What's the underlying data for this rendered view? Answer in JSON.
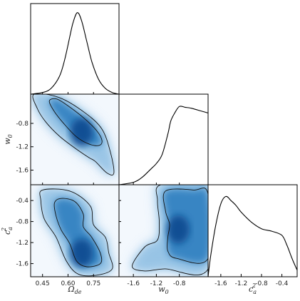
{
  "chart_data": {
    "type": "corner",
    "parameters": [
      {
        "name": "omega_de",
        "label": "Ω",
        "label_sub": "de",
        "label_sup": "",
        "range": [
          0.38,
          0.9
        ],
        "ticks": [
          0.45,
          0.6,
          0.75
        ],
        "tick_labels": [
          "0.45",
          "0.60",
          "0.75"
        ]
      },
      {
        "name": "w0",
        "label": "w",
        "label_sub": "0",
        "label_sup": "",
        "range": [
          -1.85,
          -0.3
        ],
        "ticks": [
          -1.6,
          -1.2,
          -0.8
        ],
        "tick_labels": [
          "-1.6",
          "-1.2",
          "-0.8"
        ]
      },
      {
        "name": "ca2",
        "label": "c",
        "label_sub": "a",
        "label_sup": "2",
        "range": [
          -1.85,
          -0.1
        ],
        "ticks": [
          -1.6,
          -1.2,
          -0.8,
          -0.4
        ],
        "tick_labels": [
          "-1.6",
          "-1.2",
          "-0.8",
          "-0.4"
        ]
      }
    ],
    "marginals": [
      {
        "param": "omega_de",
        "x": [
          0.38,
          0.45,
          0.5,
          0.55,
          0.58,
          0.61,
          0.63,
          0.655,
          0.68,
          0.71,
          0.74,
          0.78,
          0.82,
          0.86,
          0.9
        ],
        "density": [
          0.0,
          0.02,
          0.07,
          0.22,
          0.42,
          0.7,
          0.88,
          1.0,
          0.9,
          0.65,
          0.4,
          0.18,
          0.07,
          0.02,
          0.0
        ]
      },
      {
        "param": "w0",
        "x": [
          -1.85,
          -1.6,
          -1.45,
          -1.3,
          -1.2,
          -1.1,
          -1.0,
          -0.95,
          -0.88,
          -0.8,
          -0.7,
          -0.6,
          -0.5,
          -0.4,
          -0.3
        ],
        "density": [
          0.0,
          0.03,
          0.09,
          0.19,
          0.26,
          0.37,
          0.62,
          0.78,
          0.88,
          0.96,
          0.95,
          0.94,
          0.92,
          0.9,
          0.88
        ]
      },
      {
        "param": "ca2",
        "x": [
          -1.85,
          -1.8,
          -1.7,
          -1.6,
          -1.5,
          -1.4,
          -1.3,
          -1.2,
          -1.0,
          -0.8,
          -0.6,
          -0.4,
          -0.3,
          -0.2,
          -0.1
        ],
        "density": [
          0.0,
          0.25,
          0.62,
          0.88,
          0.97,
          0.92,
          0.86,
          0.78,
          0.66,
          0.58,
          0.55,
          0.5,
          0.38,
          0.22,
          0.08
        ]
      }
    ],
    "joints": [
      {
        "x_param": "omega_de",
        "y_param": "w0",
        "peak": [
          0.68,
          -0.95
        ],
        "contour_68": [
          [
            0.53,
            -0.38
          ],
          [
            0.59,
            -0.48
          ],
          [
            0.69,
            -0.7
          ],
          [
            0.77,
            -0.93
          ],
          [
            0.8,
            -1.1
          ],
          [
            0.78,
            -1.18
          ],
          [
            0.72,
            -1.15
          ],
          [
            0.65,
            -1.03
          ],
          [
            0.58,
            -0.82
          ],
          [
            0.52,
            -0.6
          ],
          [
            0.49,
            -0.42
          ]
        ],
        "contour_95": [
          [
            0.4,
            -0.3
          ],
          [
            0.55,
            -0.36
          ],
          [
            0.7,
            -0.62
          ],
          [
            0.8,
            -0.9
          ],
          [
            0.85,
            -1.3
          ],
          [
            0.87,
            -1.65
          ],
          [
            0.83,
            -1.65
          ],
          [
            0.76,
            -1.45
          ],
          [
            0.72,
            -1.38
          ],
          [
            0.63,
            -1.2
          ],
          [
            0.55,
            -1.02
          ],
          [
            0.47,
            -0.78
          ],
          [
            0.42,
            -0.55
          ]
        ]
      },
      {
        "x_param": "omega_de",
        "y_param": "ca2",
        "peak": [
          0.68,
          -1.4
        ],
        "contour_68": [
          [
            0.56,
            -0.36
          ],
          [
            0.64,
            -0.42
          ],
          [
            0.69,
            -0.66
          ],
          [
            0.69,
            -0.9
          ],
          [
            0.74,
            -1.1
          ],
          [
            0.79,
            -1.4
          ],
          [
            0.79,
            -1.6
          ],
          [
            0.71,
            -1.66
          ],
          [
            0.65,
            -1.55
          ],
          [
            0.61,
            -1.22
          ],
          [
            0.56,
            -0.96
          ],
          [
            0.53,
            -0.7
          ],
          [
            0.52,
            -0.45
          ]
        ],
        "contour_95": [
          [
            0.45,
            -0.2
          ],
          [
            0.61,
            -0.22
          ],
          [
            0.73,
            -0.5
          ],
          [
            0.75,
            -0.86
          ],
          [
            0.82,
            -1.1
          ],
          [
            0.84,
            -1.4
          ],
          [
            0.86,
            -1.7
          ],
          [
            0.77,
            -1.82
          ],
          [
            0.66,
            -1.8
          ],
          [
            0.59,
            -1.55
          ],
          [
            0.53,
            -1.1
          ],
          [
            0.46,
            -0.75
          ],
          [
            0.44,
            -0.4
          ]
        ]
      },
      {
        "x_param": "w0",
        "y_param": "ca2",
        "peak": [
          -0.82,
          -0.95
        ],
        "contour_68": [
          [
            -1.04,
            -0.22
          ],
          [
            -0.55,
            -0.2
          ],
          [
            -0.3,
            -0.28
          ],
          [
            -0.3,
            -1.5
          ],
          [
            -0.85,
            -1.5
          ],
          [
            -1.0,
            -1.36
          ],
          [
            -1.0,
            -1.1
          ],
          [
            -0.97,
            -0.85
          ],
          [
            -1.04,
            -0.6
          ]
        ],
        "contour_95": [
          [
            -1.12,
            -0.1
          ],
          [
            -0.3,
            -0.1
          ],
          [
            -0.3,
            -1.7
          ],
          [
            -1.05,
            -1.7
          ],
          [
            -1.4,
            -1.74
          ],
          [
            -1.62,
            -1.65
          ],
          [
            -1.4,
            -1.28
          ],
          [
            -1.18,
            -1.15
          ],
          [
            -1.15,
            -0.8
          ],
          [
            -1.18,
            -0.4
          ]
        ]
      }
    ],
    "colormap": "Blues",
    "grid": false,
    "legend": "none"
  }
}
